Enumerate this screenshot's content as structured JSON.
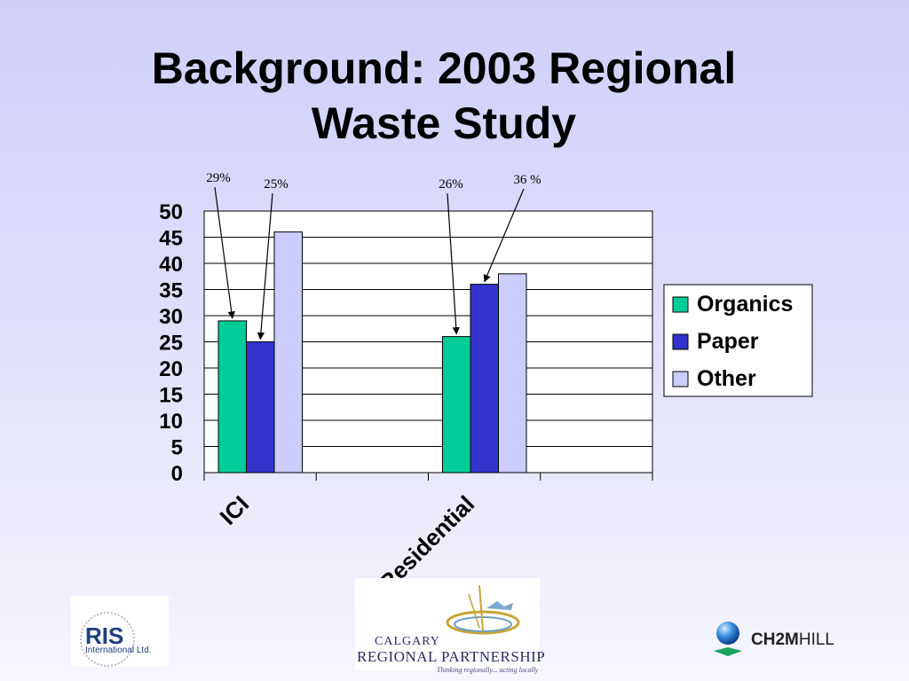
{
  "slide": {
    "title_line1": "Background: 2003 Regional",
    "title_line2": "Waste Study"
  },
  "chart_data": {
    "type": "bar",
    "categories": [
      "ICI",
      "Residential"
    ],
    "series": [
      {
        "name": "Organics",
        "values": [
          29,
          26
        ],
        "color": "#00cc99"
      },
      {
        "name": "Paper",
        "values": [
          25,
          36
        ],
        "color": "#3333cc"
      },
      {
        "name": "Other",
        "values": [
          46,
          38
        ],
        "color": "#ccccff"
      }
    ],
    "ylim": [
      0,
      50
    ],
    "yticks": [
      0,
      5,
      10,
      15,
      20,
      25,
      30,
      35,
      40,
      45,
      50
    ],
    "grid": true,
    "legend": "right",
    "annotations": [
      {
        "text": "29%",
        "category": "ICI",
        "series": "Organics"
      },
      {
        "text": "25%",
        "category": "ICI",
        "series": "Paper"
      },
      {
        "text": "26%",
        "category": "Residential",
        "series": "Organics"
      },
      {
        "text": "36 %",
        "category": "Residential",
        "series": "Paper"
      }
    ]
  },
  "logos": {
    "ris_name": "RIS",
    "ris_sub": "International Ltd.",
    "crp_line1": "CALGARY",
    "crp_line2": "REGIONAL PARTNERSHIP",
    "crp_tagline": "Thinking regionally... acting locally",
    "ch2m_bold": "CH2M",
    "ch2m_light": "HILL"
  }
}
